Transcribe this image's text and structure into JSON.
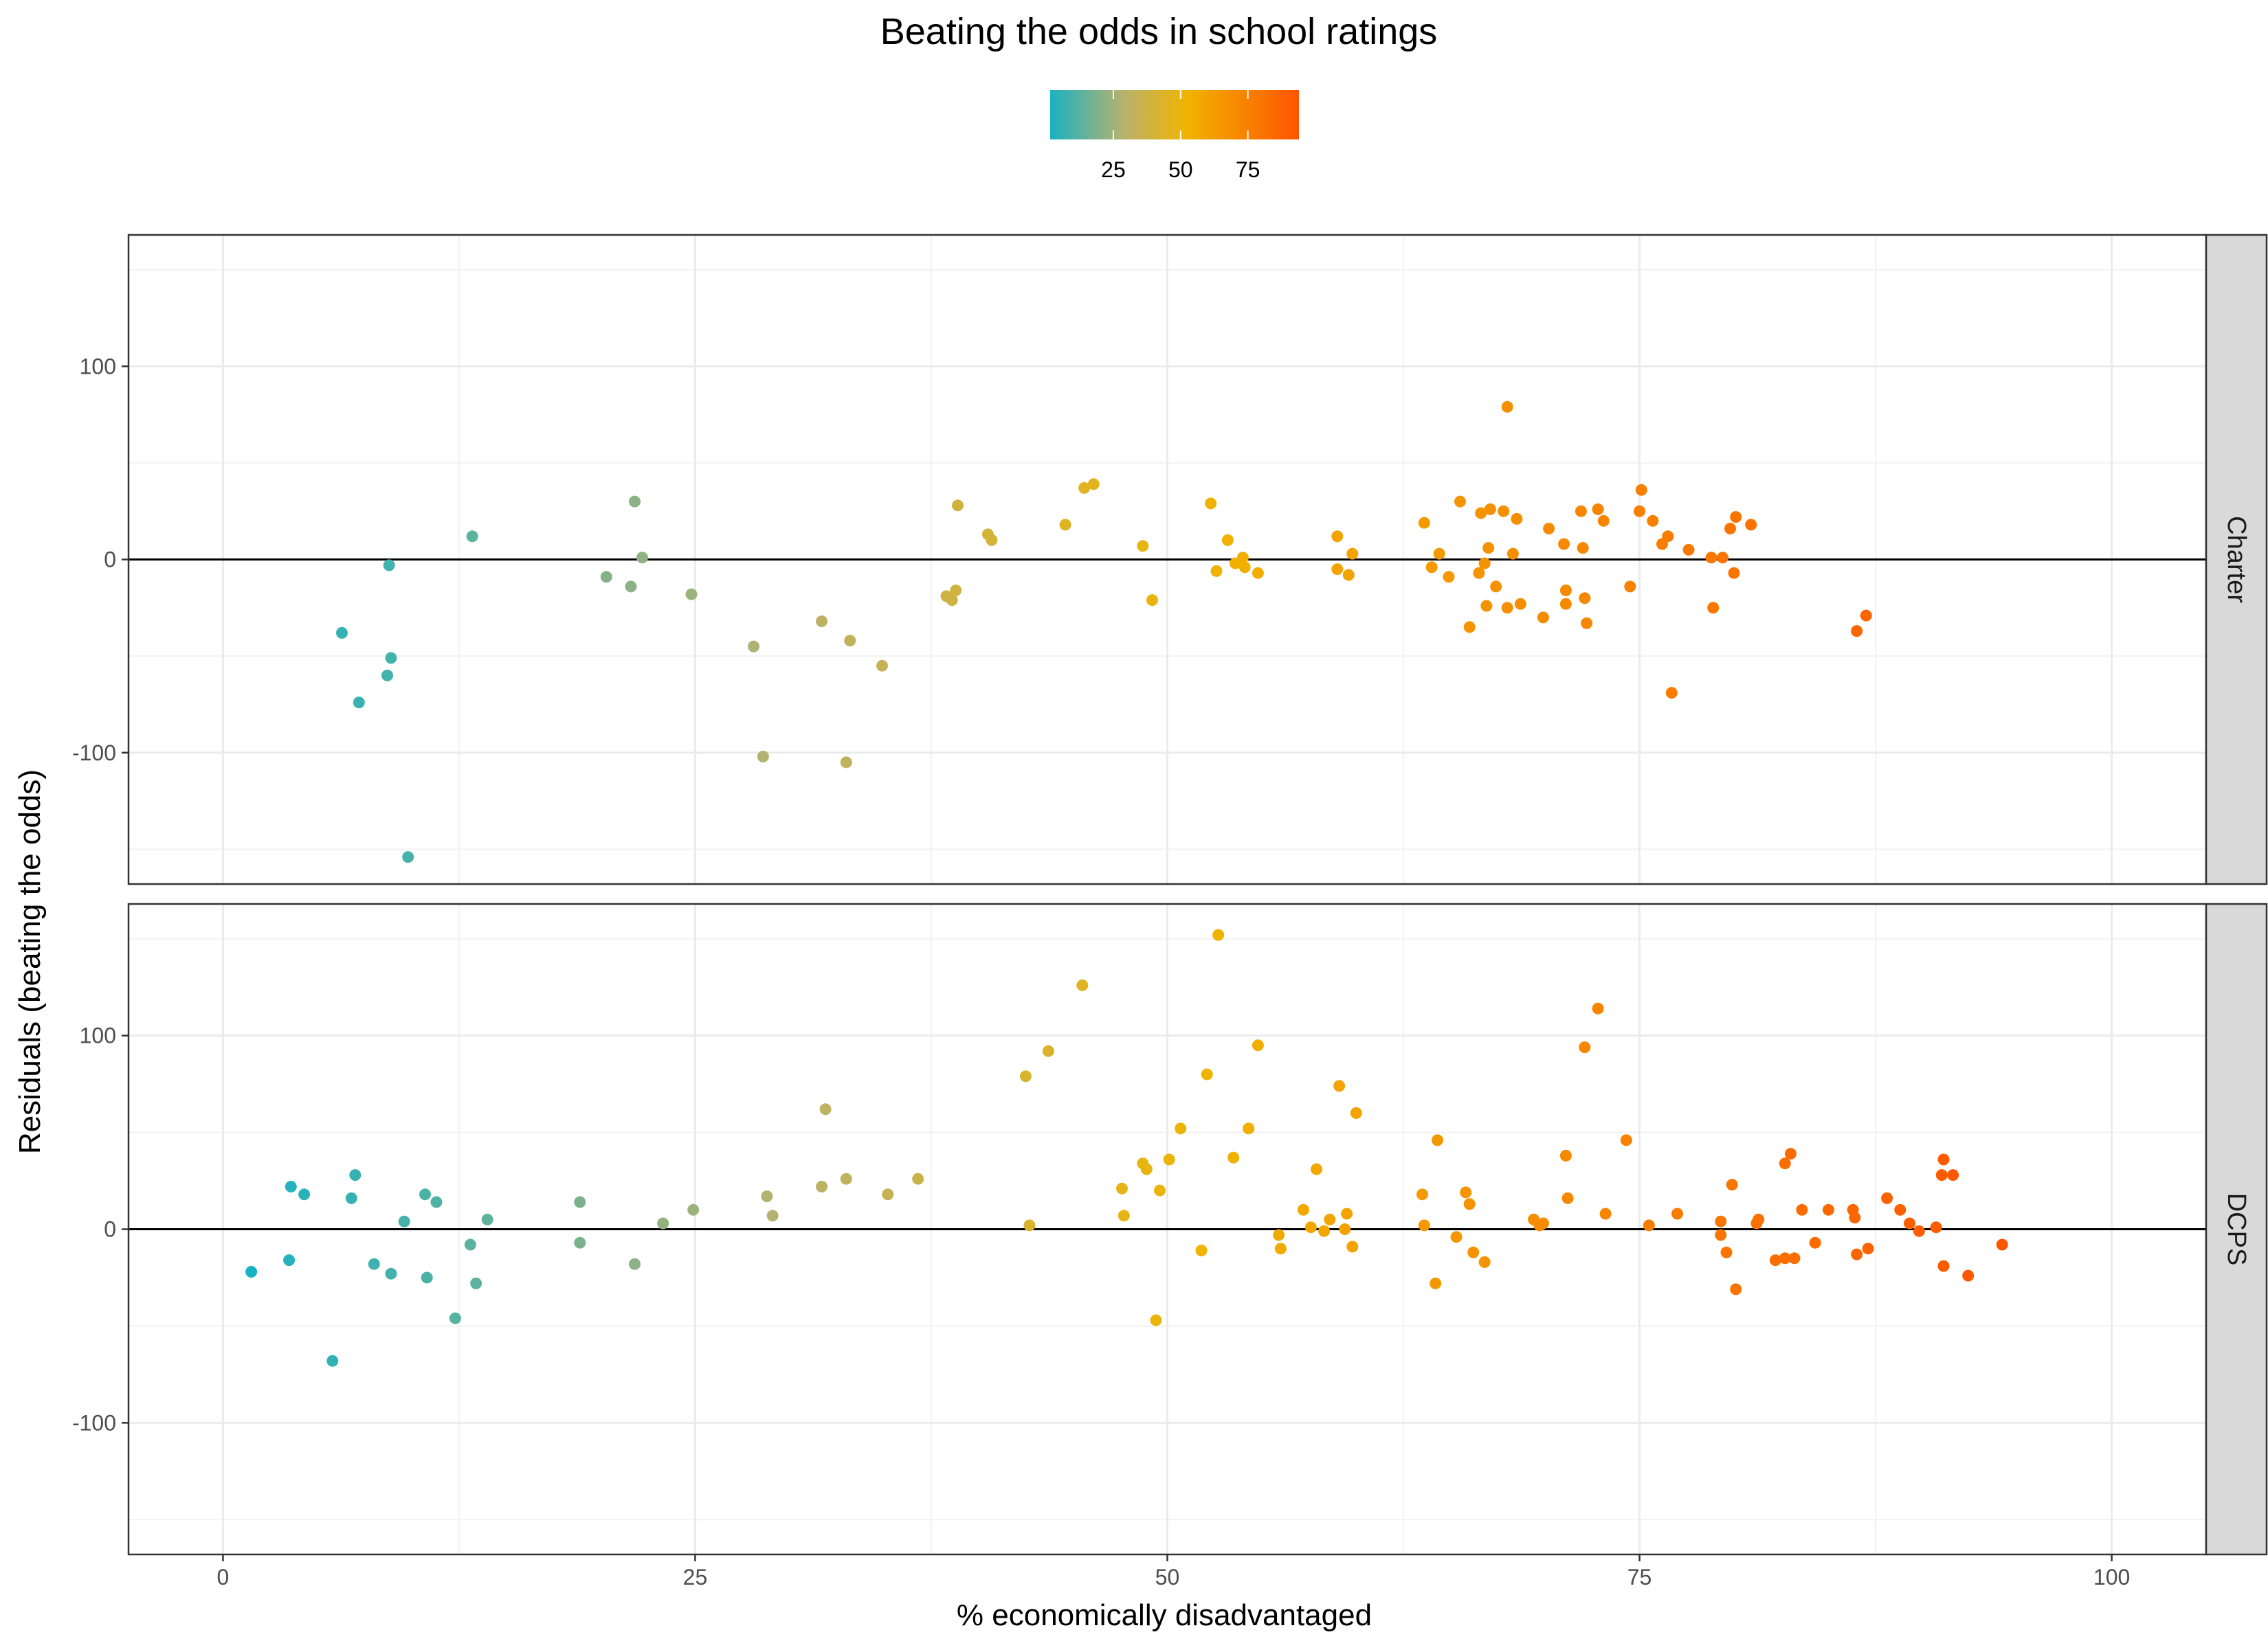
{
  "chart_data": {
    "type": "scatter",
    "title": "Beating the odds in school ratings",
    "xlabel": "% economically disadvantaged",
    "ylabel": "Residuals (beating the odds)",
    "xlim": [
      -5,
      105
    ],
    "ylim": [
      -168,
      168
    ],
    "x_ticks": [
      0,
      25,
      50,
      75,
      100
    ],
    "y_ticks": [
      -100,
      0,
      100
    ],
    "grid": true,
    "reference_line_y": 0,
    "color_scale": {
      "variable": "% economically disadvantaged",
      "range": [
        1.5,
        94
      ],
      "ticks": [
        25,
        50,
        75
      ],
      "low": "#19b2c2",
      "mid_color": "#b9b26c",
      "high_mid": "#f0b400",
      "high": "#ff5400"
    },
    "panels": [
      {
        "label": "Charter",
        "points": [
          [
            6.3,
            -38
          ],
          [
            7.2,
            -74
          ],
          [
            8.8,
            -3
          ],
          [
            8.9,
            -51
          ],
          [
            8.7,
            -60
          ],
          [
            9.8,
            -154
          ],
          [
            13.2,
            12
          ],
          [
            20.3,
            -9
          ],
          [
            21.6,
            -14
          ],
          [
            21.8,
            30
          ],
          [
            22.2,
            1
          ],
          [
            24.8,
            -18
          ],
          [
            28.1,
            -45
          ],
          [
            28.6,
            -102
          ],
          [
            31.7,
            -32
          ],
          [
            33.0,
            -105
          ],
          [
            33.2,
            -42
          ],
          [
            34.9,
            -55
          ],
          [
            38.3,
            -19
          ],
          [
            38.6,
            -21
          ],
          [
            38.8,
            -16
          ],
          [
            38.9,
            28
          ],
          [
            40.5,
            13
          ],
          [
            40.7,
            10
          ],
          [
            44.6,
            18
          ],
          [
            45.6,
            37
          ],
          [
            46.1,
            39
          ],
          [
            48.7,
            7
          ],
          [
            49.2,
            -21
          ],
          [
            52.3,
            29
          ],
          [
            52.6,
            -6
          ],
          [
            53.2,
            10
          ],
          [
            53.6,
            -2
          ],
          [
            54.0,
            1
          ],
          [
            54.1,
            -4
          ],
          [
            54.8,
            -7
          ],
          [
            59.0,
            12
          ],
          [
            59.0,
            -5
          ],
          [
            59.6,
            -8
          ],
          [
            59.8,
            3
          ],
          [
            63.6,
            19
          ],
          [
            64.0,
            -4
          ],
          [
            64.4,
            3
          ],
          [
            64.9,
            -9
          ],
          [
            65.5,
            30
          ],
          [
            66.0,
            -35
          ],
          [
            66.5,
            -7
          ],
          [
            66.6,
            24
          ],
          [
            66.8,
            -2
          ],
          [
            66.9,
            -24
          ],
          [
            67.0,
            6
          ],
          [
            67.1,
            26
          ],
          [
            67.4,
            -14
          ],
          [
            67.8,
            25
          ],
          [
            68.0,
            79
          ],
          [
            68.0,
            -25
          ],
          [
            68.3,
            3
          ],
          [
            68.5,
            21
          ],
          [
            68.7,
            -23
          ],
          [
            69.9,
            -30
          ],
          [
            70.2,
            16
          ],
          [
            71.0,
            8
          ],
          [
            71.1,
            -16
          ],
          [
            71.1,
            -23
          ],
          [
            71.9,
            25
          ],
          [
            72.0,
            6
          ],
          [
            72.2,
            -33
          ],
          [
            72.1,
            -20
          ],
          [
            72.8,
            26
          ],
          [
            73.1,
            20
          ],
          [
            74.5,
            -14
          ],
          [
            75.0,
            25
          ],
          [
            75.1,
            36
          ],
          [
            75.7,
            20
          ],
          [
            76.2,
            8
          ],
          [
            76.5,
            12
          ],
          [
            76.7,
            -69
          ],
          [
            77.6,
            5
          ],
          [
            78.8,
            1
          ],
          [
            78.9,
            -25
          ],
          [
            79.4,
            1
          ],
          [
            79.8,
            16
          ],
          [
            80.0,
            -7
          ],
          [
            80.1,
            22
          ],
          [
            80.9,
            18
          ],
          [
            86.5,
            -37
          ],
          [
            87.0,
            -29
          ]
        ]
      },
      {
        "label": "DCPS",
        "points": [
          [
            1.5,
            -22
          ],
          [
            3.5,
            -16
          ],
          [
            3.6,
            22
          ],
          [
            4.3,
            18
          ],
          [
            5.8,
            -68
          ],
          [
            6.8,
            16
          ],
          [
            7.0,
            28
          ],
          [
            8.0,
            -18
          ],
          [
            8.9,
            -23
          ],
          [
            9.6,
            4
          ],
          [
            10.7,
            18
          ],
          [
            10.8,
            -25
          ],
          [
            11.3,
            14
          ],
          [
            12.3,
            -46
          ],
          [
            13.1,
            -8
          ],
          [
            13.4,
            -28
          ],
          [
            14.0,
            5
          ],
          [
            18.9,
            14
          ],
          [
            18.9,
            -7
          ],
          [
            21.8,
            -18
          ],
          [
            23.3,
            3
          ],
          [
            24.9,
            10
          ],
          [
            28.8,
            17
          ],
          [
            29.1,
            7
          ],
          [
            31.7,
            22
          ],
          [
            31.9,
            62
          ],
          [
            33.0,
            26
          ],
          [
            35.2,
            18
          ],
          [
            36.8,
            26
          ],
          [
            42.5,
            79
          ],
          [
            42.7,
            2
          ],
          [
            43.7,
            92
          ],
          [
            45.5,
            126
          ],
          [
            47.6,
            21
          ],
          [
            47.7,
            7
          ],
          [
            48.7,
            34
          ],
          [
            48.9,
            31
          ],
          [
            49.4,
            -47
          ],
          [
            49.6,
            20
          ],
          [
            50.1,
            36
          ],
          [
            50.7,
            52
          ],
          [
            51.8,
            -11
          ],
          [
            52.1,
            80
          ],
          [
            52.7,
            152
          ],
          [
            53.5,
            37
          ],
          [
            54.3,
            52
          ],
          [
            54.8,
            95
          ],
          [
            55.9,
            -3
          ],
          [
            56.0,
            -10
          ],
          [
            57.2,
            10
          ],
          [
            57.6,
            1
          ],
          [
            57.9,
            31
          ],
          [
            58.3,
            -1
          ],
          [
            58.6,
            5
          ],
          [
            59.1,
            74
          ],
          [
            59.4,
            0
          ],
          [
            59.5,
            8
          ],
          [
            59.8,
            -9
          ],
          [
            60.0,
            60
          ],
          [
            63.5,
            18
          ],
          [
            63.6,
            2
          ],
          [
            64.2,
            -28
          ],
          [
            64.3,
            46
          ],
          [
            65.3,
            -4
          ],
          [
            65.8,
            19
          ],
          [
            66.0,
            13
          ],
          [
            66.2,
            -12
          ],
          [
            66.8,
            -17
          ],
          [
            69.4,
            5
          ],
          [
            69.7,
            2
          ],
          [
            69.9,
            3
          ],
          [
            71.1,
            38
          ],
          [
            71.2,
            16
          ],
          [
            72.1,
            94
          ],
          [
            72.8,
            114
          ],
          [
            73.2,
            8
          ],
          [
            74.3,
            46
          ],
          [
            75.5,
            2
          ],
          [
            77.0,
            8
          ],
          [
            79.3,
            4
          ],
          [
            79.3,
            -3
          ],
          [
            79.6,
            -12
          ],
          [
            79.9,
            23
          ],
          [
            80.1,
            -31
          ],
          [
            81.2,
            3
          ],
          [
            81.3,
            5
          ],
          [
            82.2,
            -16
          ],
          [
            82.7,
            -15
          ],
          [
            82.7,
            34
          ],
          [
            83.0,
            39
          ],
          [
            83.2,
            -15
          ],
          [
            83.6,
            10
          ],
          [
            84.3,
            -7
          ],
          [
            85.0,
            10
          ],
          [
            86.3,
            10
          ],
          [
            86.4,
            6
          ],
          [
            86.5,
            -13
          ],
          [
            87.1,
            -10
          ],
          [
            88.1,
            16
          ],
          [
            88.8,
            10
          ],
          [
            89.3,
            3
          ],
          [
            89.8,
            -1
          ],
          [
            90.7,
            1
          ],
          [
            91.0,
            28
          ],
          [
            91.1,
            36
          ],
          [
            91.1,
            -19
          ],
          [
            91.6,
            28
          ],
          [
            92.4,
            -24
          ],
          [
            94.2,
            -8
          ]
        ]
      }
    ]
  }
}
